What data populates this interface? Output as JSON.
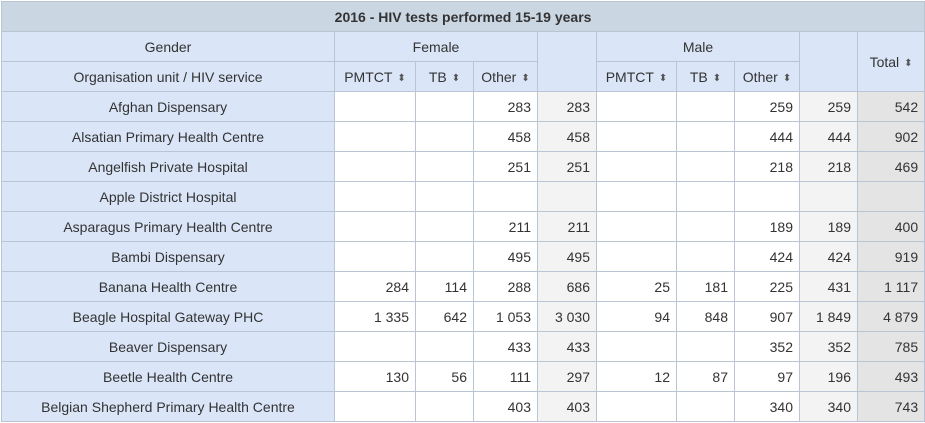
{
  "table": {
    "title": "2016 - HIV tests performed 15-19 years",
    "gender_label": "Gender",
    "org_unit_label": "Organisation unit / HIV service",
    "female_label": "Female",
    "male_label": "Male",
    "total_label": "Total",
    "sort_glyph": "⬍",
    "service_headers": [
      "PMTCT",
      "TB",
      "Other"
    ],
    "rows": [
      {
        "name": "Afghan Dispensary",
        "f_pmtct": "",
        "f_tb": "",
        "f_other": "283",
        "f_sub": "283",
        "m_pmtct": "",
        "m_tb": "",
        "m_other": "259",
        "m_sub": "259",
        "total": "542"
      },
      {
        "name": "Alsatian Primary Health Centre",
        "f_pmtct": "",
        "f_tb": "",
        "f_other": "458",
        "f_sub": "458",
        "m_pmtct": "",
        "m_tb": "",
        "m_other": "444",
        "m_sub": "444",
        "total": "902"
      },
      {
        "name": "Angelfish Private Hospital",
        "f_pmtct": "",
        "f_tb": "",
        "f_other": "251",
        "f_sub": "251",
        "m_pmtct": "",
        "m_tb": "",
        "m_other": "218",
        "m_sub": "218",
        "total": "469"
      },
      {
        "name": "Apple District Hospital",
        "f_pmtct": "",
        "f_tb": "",
        "f_other": "",
        "f_sub": "",
        "m_pmtct": "",
        "m_tb": "",
        "m_other": "",
        "m_sub": "",
        "total": ""
      },
      {
        "name": "Asparagus Primary Health Centre",
        "f_pmtct": "",
        "f_tb": "",
        "f_other": "211",
        "f_sub": "211",
        "m_pmtct": "",
        "m_tb": "",
        "m_other": "189",
        "m_sub": "189",
        "total": "400"
      },
      {
        "name": "Bambi Dispensary",
        "f_pmtct": "",
        "f_tb": "",
        "f_other": "495",
        "f_sub": "495",
        "m_pmtct": "",
        "m_tb": "",
        "m_other": "424",
        "m_sub": "424",
        "total": "919"
      },
      {
        "name": "Banana Health Centre",
        "f_pmtct": "284",
        "f_tb": "114",
        "f_other": "288",
        "f_sub": "686",
        "m_pmtct": "25",
        "m_tb": "181",
        "m_other": "225",
        "m_sub": "431",
        "total": "1 117"
      },
      {
        "name": "Beagle Hospital Gateway PHC",
        "f_pmtct": "1 335",
        "f_tb": "642",
        "f_other": "1 053",
        "f_sub": "3 030",
        "m_pmtct": "94",
        "m_tb": "848",
        "m_other": "907",
        "m_sub": "1 849",
        "total": "4 879"
      },
      {
        "name": "Beaver Dispensary",
        "f_pmtct": "",
        "f_tb": "",
        "f_other": "433",
        "f_sub": "433",
        "m_pmtct": "",
        "m_tb": "",
        "m_other": "352",
        "m_sub": "352",
        "total": "785"
      },
      {
        "name": "Beetle Health Centre",
        "f_pmtct": "130",
        "f_tb": "56",
        "f_other": "111",
        "f_sub": "297",
        "m_pmtct": "12",
        "m_tb": "87",
        "m_other": "97",
        "m_sub": "196",
        "total": "493"
      },
      {
        "name": "Belgian Shepherd Primary Health Centre",
        "f_pmtct": "",
        "f_tb": "",
        "f_other": "403",
        "f_sub": "403",
        "m_pmtct": "",
        "m_tb": "",
        "m_other": "340",
        "m_sub": "340",
        "total": "743"
      }
    ]
  }
}
